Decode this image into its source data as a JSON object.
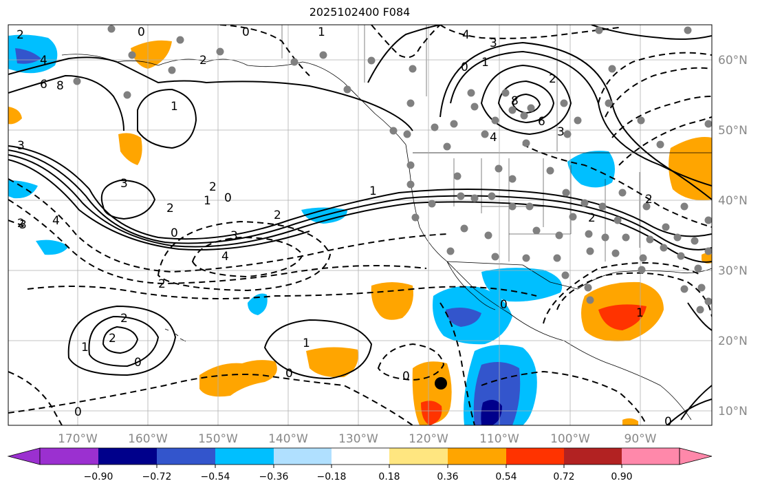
{
  "title": "2025102400 F084",
  "map": {
    "lon_labels": [
      "170°W",
      "160°W",
      "150°W",
      "140°W",
      "130°W",
      "120°W",
      "110°W",
      "100°W",
      "90°W"
    ],
    "lat_labels": [
      "60°N",
      "50°N",
      "40°N",
      "30°N",
      "20°N",
      "10°N"
    ],
    "contour_labels": [
      "0",
      "2",
      "4",
      "6",
      "8",
      "1",
      "2",
      "3",
      "0",
      "1",
      "3",
      "2",
      "1",
      "2",
      "0",
      "0",
      "2",
      "3",
      "4",
      "2",
      "1",
      "2",
      "2",
      "0",
      "1",
      "0",
      "0",
      "1",
      "2",
      "3",
      "4",
      "0",
      "8",
      "6",
      "4",
      "3",
      "2",
      "2",
      "0",
      "1",
      "2",
      "4",
      "0",
      "1",
      "0",
      "3"
    ]
  },
  "colorbar": {
    "ticks": [
      "−0.90",
      "−0.72",
      "−0.54",
      "−0.36",
      "−0.18",
      "0.18",
      "0.36",
      "0.54",
      "0.72",
      "0.90"
    ],
    "colors": [
      "#9b30d0",
      "#00008b",
      "#3355cc",
      "#00bfff",
      "#b0e0ff",
      "#ffffff",
      "#ffe680",
      "#ffa500",
      "#ff3300",
      "#b22222",
      "#ff88aa"
    ]
  }
}
